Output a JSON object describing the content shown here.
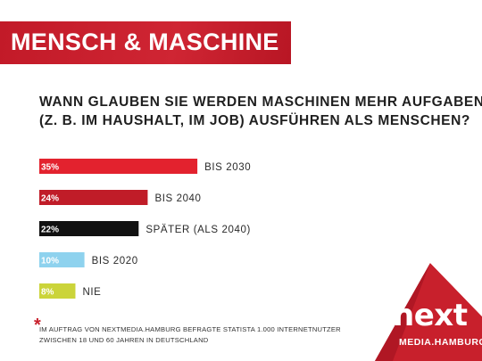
{
  "banner": {
    "title": "MENSCH & MASCHINE"
  },
  "question": {
    "line1": "WANN GLAUBEN SIE WERDEN MASCHINEN MEHR AUFGABEN",
    "line2": "(Z. B. IM HAUSHALT, IM JOB) AUSFÜHREN ALS MENSCHEN?"
  },
  "chart_data": {
    "type": "bar",
    "orientation": "horizontal",
    "categories": [
      "BIS 2030",
      "BIS 2040",
      "SPÄTER (ALS 2040)",
      "BIS 2020",
      "NIE"
    ],
    "values": [
      35,
      24,
      22,
      10,
      8
    ],
    "value_labels": [
      "35%",
      "24%",
      "22%",
      "10%",
      "8%"
    ],
    "colors": [
      "#e3222e",
      "#c01c28",
      "#111111",
      "#8ed2ee",
      "#cbd43a"
    ],
    "unit": "%",
    "grid": false,
    "legend": "none"
  },
  "footnote": {
    "marker": "*",
    "line1": "IM AUFTRAG VON NEXTMEDIA.HAMBURG BEFRAGTE STATISTA 1.000 INTERNETNUTZER",
    "line2": "ZWISCHEN 18 UND 60 JAHREN IN DEUTSCHLAND"
  },
  "logo": {
    "word": "next",
    "sub": "MEDIA.HAMBURG"
  },
  "colors": {
    "brand_red": "#c8202c",
    "text": "#1f1f1f"
  }
}
